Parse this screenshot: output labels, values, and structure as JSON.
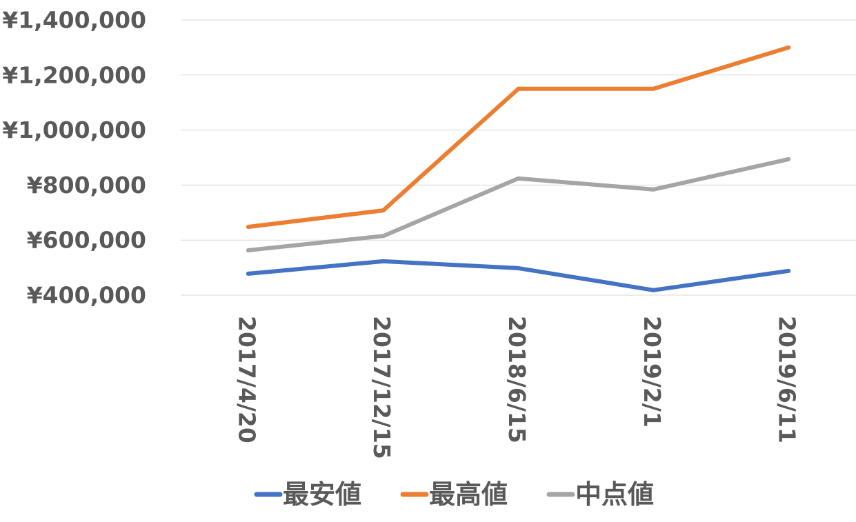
{
  "chart_data": {
    "type": "line",
    "title": "",
    "xlabel": "",
    "ylabel": "",
    "categories": [
      "2017/4/20",
      "2017/12/15",
      "2018/6/15",
      "2019/2/1",
      "2019/6/11"
    ],
    "series": [
      {
        "name": "最安値",
        "color": "#4472c4",
        "values": [
          478000,
          523000,
          498000,
          418000,
          488000
        ]
      },
      {
        "name": "最高値",
        "color": "#ed7d31",
        "values": [
          648000,
          708000,
          1150000,
          1150000,
          1300000
        ]
      },
      {
        "name": "中点値",
        "color": "#a5a5a5",
        "values": [
          563000,
          615000,
          824000,
          784000,
          894000
        ]
      }
    ],
    "ylim": [
      400000,
      1400000
    ],
    "yticks": [
      {
        "value": 400000,
        "label": "¥400,000"
      },
      {
        "value": 600000,
        "label": "¥600,000"
      },
      {
        "value": 800000,
        "label": "¥800,000"
      },
      {
        "value": 1000000,
        "label": "¥1,000,000"
      },
      {
        "value": 1200000,
        "label": "¥1,200,000"
      },
      {
        "value": 1400000,
        "label": "¥1,400,000"
      }
    ],
    "grid": true,
    "legend": "bottom"
  }
}
